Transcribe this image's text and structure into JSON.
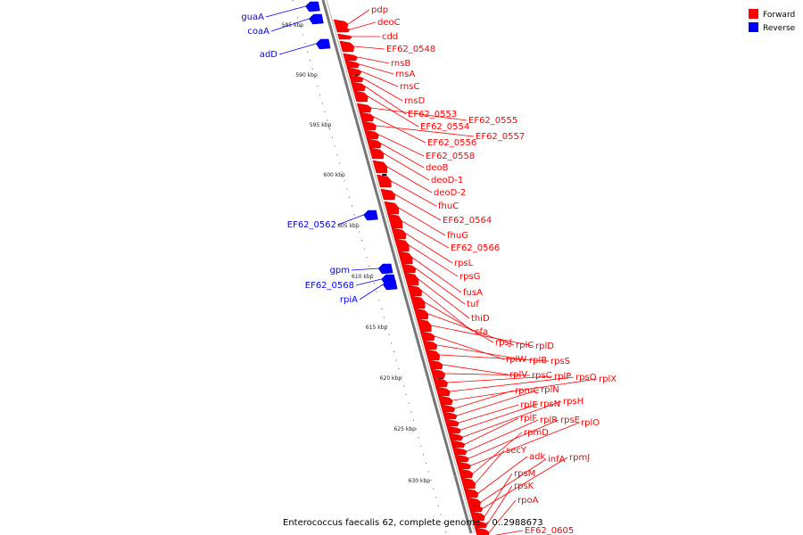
{
  "caption": "Enterococcus faecalis 62, complete genome. - 0..2988673",
  "legend": [
    {
      "label": "Forward",
      "color": "#ff0000"
    },
    {
      "label": "Reverse",
      "color": "#0000ff"
    }
  ],
  "colors": {
    "forward": "#ff0000",
    "reverse": "#0000ff",
    "backbone": "#777777"
  },
  "ticks": [
    "585 kbp",
    "590 kbp",
    "595 kbp",
    "600 kbp",
    "605 kbp",
    "610 kbp",
    "615 kbp",
    "620 kbp",
    "625 kbp",
    "630 kbp"
  ],
  "forward_genes": [
    "pdp",
    "deoC",
    "cdd",
    "EF62_0548",
    "rnsB",
    "rnsA",
    "rnsC",
    "rnsD",
    "EF62_0553",
    "EF62_0554",
    "EF62_0555",
    "EF62_0556",
    "EF62_0557",
    "EF62_0558",
    "deoB",
    "deoD-1",
    "deoD-2",
    "fhuC",
    "EF62_0564",
    "fhuG",
    "EF62_0566",
    "rpsL",
    "rpsG",
    "fusA",
    "tuf",
    "thiD",
    "cfa",
    "rpsJ",
    "rplC",
    "rplD",
    "rplW",
    "rplB",
    "rpsS",
    "rplV",
    "rpsC",
    "rplP",
    "rpsQ",
    "rplX",
    "rpmC",
    "rplN",
    "rplE",
    "rpsN",
    "rpsH",
    "rplF",
    "rplR",
    "rpsE",
    "rplO",
    "rpmD",
    "secY",
    "adk",
    "infA",
    "rpmJ",
    "rpsM",
    "rpsK",
    "rpoA",
    "EF62_0605"
  ],
  "reverse_genes": [
    "guaA",
    "coaA",
    "adD",
    "EF62_0562",
    "gpm",
    "EF62_0568",
    "rpiA"
  ]
}
